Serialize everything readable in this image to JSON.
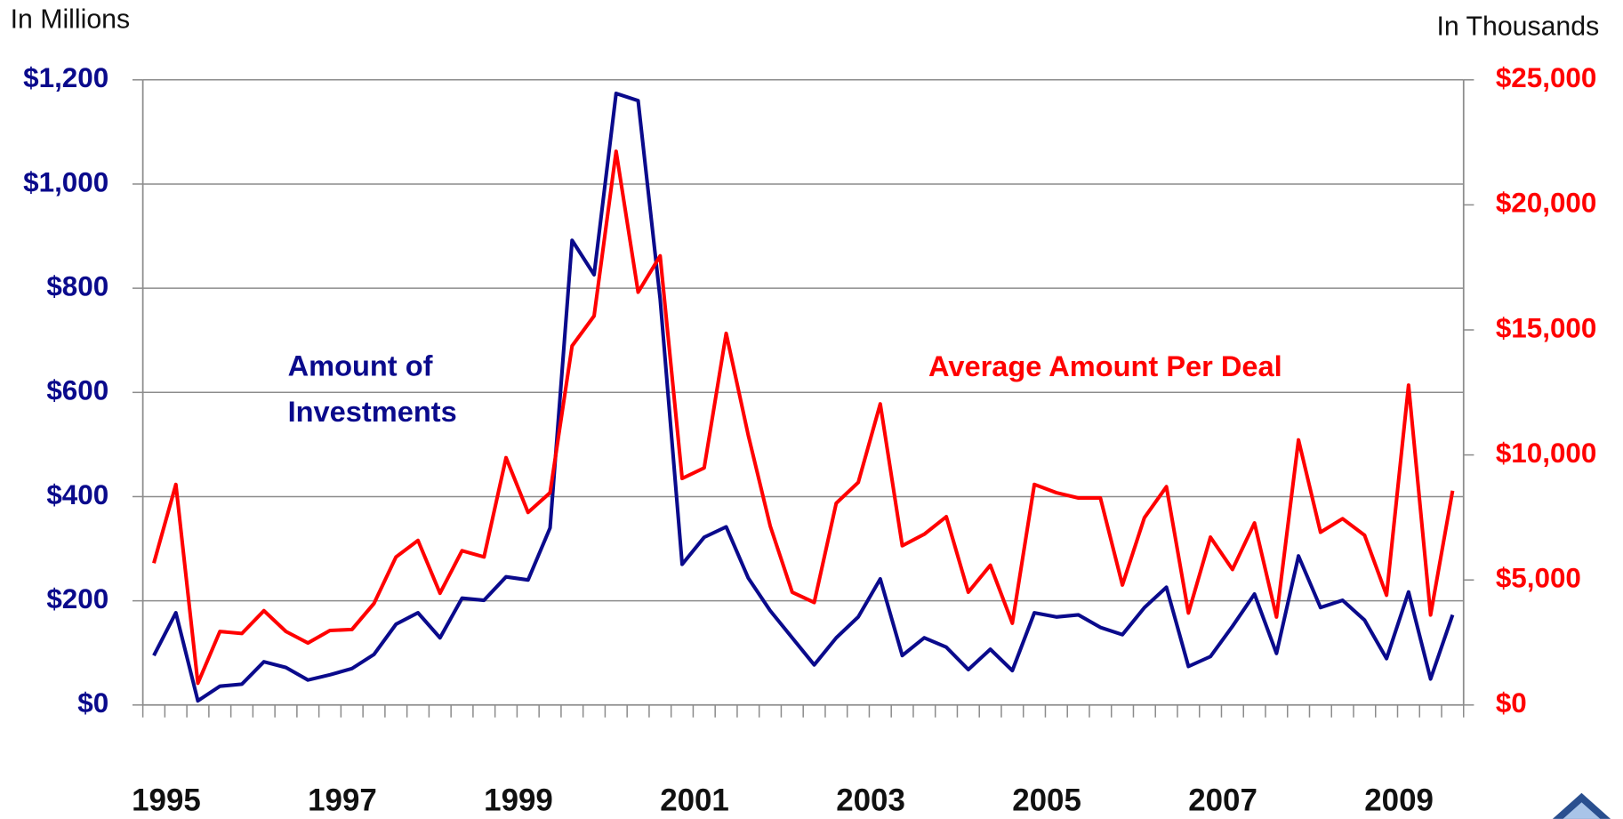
{
  "chart_data": {
    "type": "line",
    "title_left": "In Millions",
    "title_right": "In Thousands",
    "categories": [
      "1995",
      null,
      null,
      null,
      null,
      null,
      null,
      null,
      "1997",
      null,
      null,
      null,
      null,
      null,
      null,
      null,
      "1999",
      null,
      null,
      null,
      null,
      null,
      null,
      null,
      "2001",
      null,
      null,
      null,
      null,
      null,
      null,
      null,
      "2003",
      null,
      null,
      null,
      null,
      null,
      null,
      null,
      "2005",
      null,
      null,
      null,
      null,
      null,
      null,
      null,
      "2007",
      null,
      null,
      null,
      null,
      null,
      null,
      null,
      "2009",
      null,
      null,
      null
    ],
    "series": [
      {
        "name": "Amount of Investments",
        "color": "#0a0a8c",
        "axis": "y",
        "values": [
          95,
          177,
          8,
          36,
          40,
          83,
          72,
          48,
          58,
          70,
          97,
          155,
          177,
          129,
          205,
          201,
          246,
          240,
          340,
          892,
          826,
          1174,
          1160,
          780,
          270,
          322,
          342,
          244,
          181,
          129,
          77,
          129,
          169,
          242,
          95,
          129,
          111,
          68,
          107,
          66,
          177,
          169,
          173,
          149,
          135,
          187,
          226,
          74,
          93,
          151,
          213,
          99,
          286,
          187,
          201,
          163,
          89,
          217,
          50,
          173
        ]
      },
      {
        "name": "Average Amount Per Deal",
        "color": "#ff0000",
        "axis": "y2",
        "values": [
          5670,
          8820,
          870,
          2940,
          2860,
          3770,
          2940,
          2480,
          2980,
          3020,
          4060,
          5920,
          6580,
          4470,
          6170,
          5920,
          9890,
          7700,
          8490,
          14360,
          15560,
          22140,
          16510,
          17960,
          9060,
          9480,
          14860,
          10800,
          7160,
          4510,
          4100,
          8070,
          8900,
          12040,
          6370,
          6830,
          7530,
          4510,
          5590,
          3270,
          8820,
          8490,
          8280,
          8280,
          4800,
          7490,
          8730,
          3680,
          6710,
          5420,
          7280,
          3520,
          10600,
          6910,
          7450,
          6790,
          4390,
          12790,
          3600,
          8570
        ]
      }
    ],
    "ylim": [
      0,
      1200
    ],
    "yticks": [
      {
        "value": 0,
        "label": "$0"
      },
      {
        "value": 200,
        "label": "$200"
      },
      {
        "value": 400,
        "label": "$400"
      },
      {
        "value": 600,
        "label": "$600"
      },
      {
        "value": 800,
        "label": "$800"
      },
      {
        "value": 1000,
        "label": "$1,000"
      },
      {
        "value": 1200,
        "label": "$1,200"
      }
    ],
    "y2lim": [
      0,
      25000
    ],
    "y2ticks": [
      {
        "value": 0,
        "label": "$0"
      },
      {
        "value": 5000,
        "label": "$5,000"
      },
      {
        "value": 10000,
        "label": "$10,000"
      },
      {
        "value": 15000,
        "label": "$15,000"
      },
      {
        "value": 20000,
        "label": "$20,000"
      },
      {
        "value": 25000,
        "label": "$25,000"
      }
    ],
    "grid": true
  }
}
